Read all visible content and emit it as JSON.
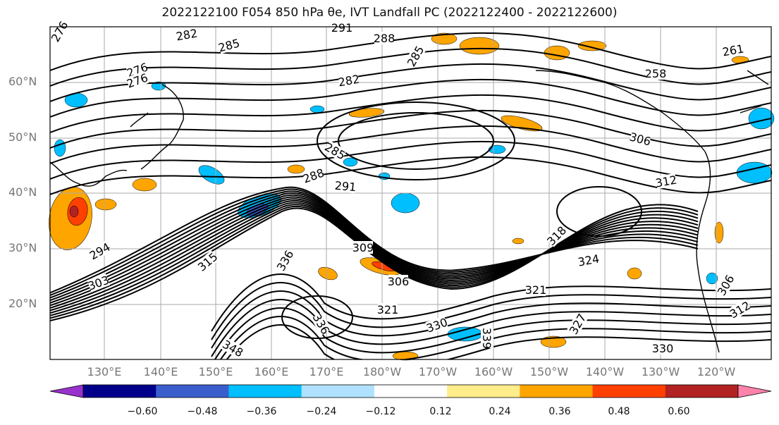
{
  "title": "2022122100 F054 850 hPa θe, IVT Landfall PC (2022122400 - 2022122600)",
  "lat_labels": [
    "60°N",
    "50°N",
    "40°N",
    "30°N",
    "20°N"
  ],
  "lon_labels": [
    "130°E",
    "140°E",
    "150°E",
    "160°E",
    "170°E",
    "180°W",
    "170°W",
    "160°W",
    "150°W",
    "140°W",
    "130°W",
    "120°W"
  ],
  "contour_labels": [
    "276",
    "282",
    "285",
    "291",
    "288",
    "276",
    "276",
    "285",
    "282",
    "261",
    "258",
    "285",
    "288",
    "291",
    "306",
    "312",
    "294",
    "303",
    "315",
    "336",
    "309",
    "306",
    "324",
    "321",
    "321",
    "330",
    "339",
    "348",
    "327",
    "336",
    "330",
    "306",
    "312",
    "318"
  ],
  "colorbar": {
    "colors": [
      "#9932cc",
      "#00008b",
      "#3a5fcd",
      "#00bfff",
      "#b0e2ff",
      "#ffffff",
      "#ffec8b",
      "#ffa500",
      "#ff4000",
      "#b22222",
      "#ff82ab"
    ],
    "tick_labels": [
      "−0.60",
      "−0.48",
      "−0.36",
      "−0.24",
      "−0.12",
      "0.12",
      "0.24",
      "0.36",
      "0.48",
      "0.60"
    ]
  }
}
